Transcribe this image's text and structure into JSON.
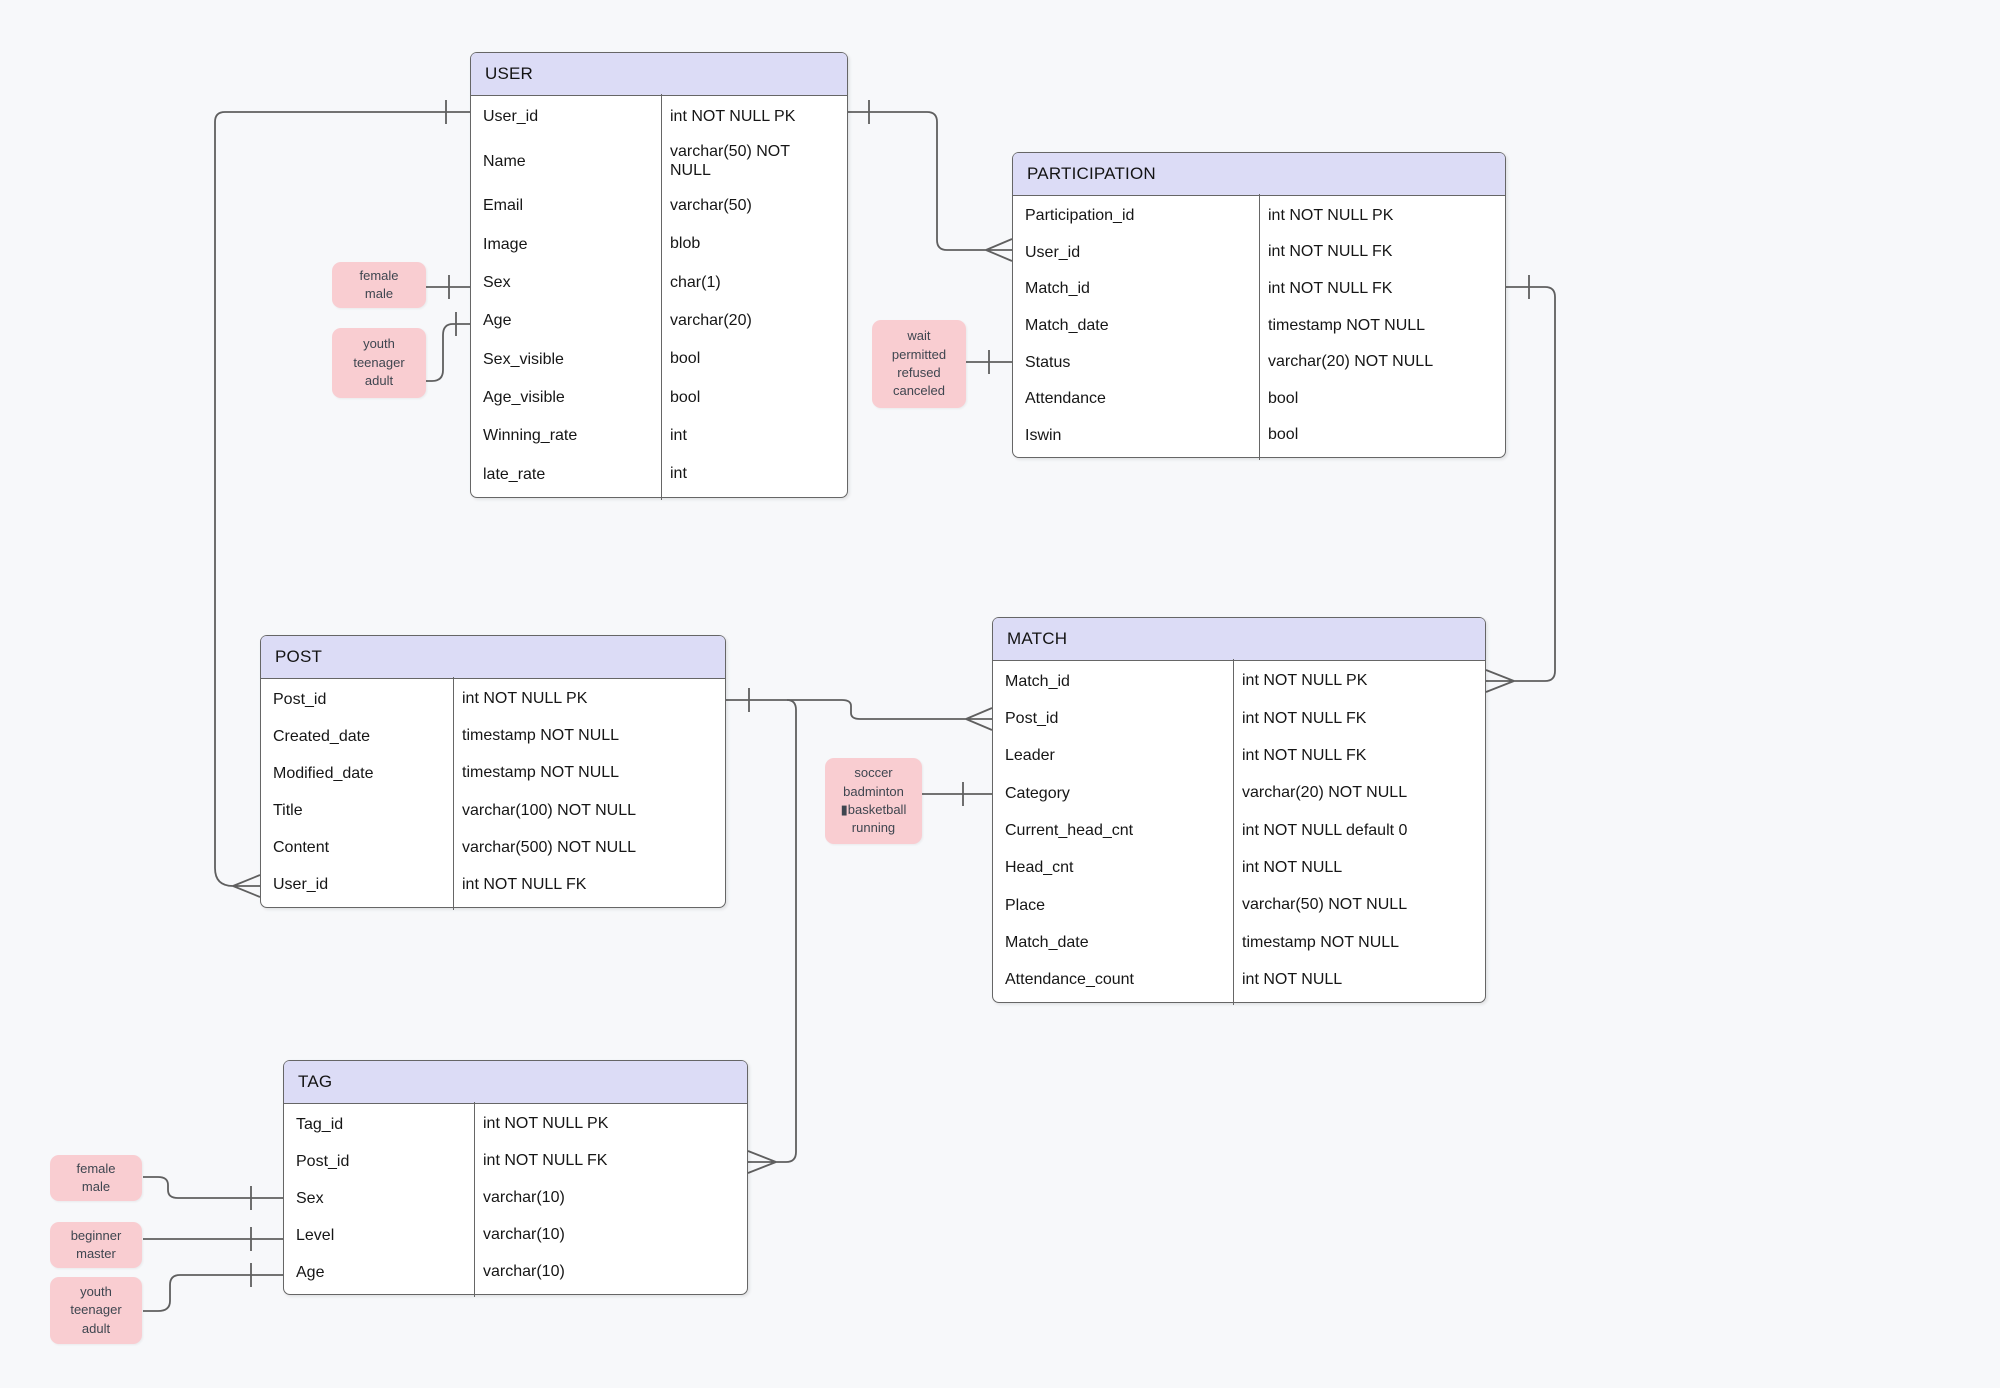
{
  "diagram": {
    "background": "#f7f8fa",
    "colors": {
      "entity_header_fill": "#dcdcf6",
      "entity_body_fill": "#ffffff",
      "entity_border": "#666666",
      "note_fill": "#f9cdd1",
      "note_text": "#3f4650",
      "connector": "#5f5f5f",
      "text": "#161616"
    },
    "entities": [
      {
        "id": "user",
        "title": "USER",
        "fields": [
          {
            "name": "User_id",
            "type": "int NOT NULL PK"
          },
          {
            "name": "Name",
            "type": "varchar(50) NOT\nNULL"
          },
          {
            "name": "Email",
            "type": "varchar(50)"
          },
          {
            "name": "Image",
            "type": "blob"
          },
          {
            "name": "Sex",
            "type": "char(1)"
          },
          {
            "name": "Age",
            "type": "varchar(20)"
          },
          {
            "name": "Sex_visible",
            "type": "bool"
          },
          {
            "name": "Age_visible",
            "type": "bool"
          },
          {
            "name": "Winning_rate",
            "type": "int"
          },
          {
            "name": "late_rate",
            "type": "int"
          }
        ]
      },
      {
        "id": "participation",
        "title": "PARTICIPATION",
        "fields": [
          {
            "name": "Participation_id",
            "type": "int NOT NULL PK"
          },
          {
            "name": "User_id",
            "type": "int NOT NULL FK"
          },
          {
            "name": "Match_id",
            "type": "int NOT NULL FK"
          },
          {
            "name": "Match_date",
            "type": "timestamp NOT NULL"
          },
          {
            "name": "Status",
            "type": "varchar(20) NOT NULL"
          },
          {
            "name": "Attendance",
            "type": "bool"
          },
          {
            "name": "Iswin",
            "type": "bool"
          }
        ]
      },
      {
        "id": "post",
        "title": "POST",
        "fields": [
          {
            "name": "Post_id",
            "type": "int NOT NULL PK"
          },
          {
            "name": "Created_date",
            "type": "timestamp NOT NULL"
          },
          {
            "name": "Modified_date",
            "type": "timestamp NOT NULL"
          },
          {
            "name": "Title",
            "type": "varchar(100) NOT NULL"
          },
          {
            "name": "Content",
            "type": "varchar(500) NOT NULL"
          },
          {
            "name": "User_id",
            "type": "int NOT NULL FK"
          }
        ]
      },
      {
        "id": "match",
        "title": "MATCH",
        "fields": [
          {
            "name": "Match_id",
            "type": "int NOT NULL PK"
          },
          {
            "name": "Post_id",
            "type": "int NOT NULL FK"
          },
          {
            "name": "Leader",
            "type": "int NOT NULL FK"
          },
          {
            "name": "Category",
            "type": "varchar(20) NOT NULL"
          },
          {
            "name": "Current_head_cnt",
            "type": "int NOT NULL default 0"
          },
          {
            "name": "Head_cnt",
            "type": "int NOT NULL"
          },
          {
            "name": "Place",
            "type": "varchar(50) NOT NULL"
          },
          {
            "name": "Match_date",
            "type": "timestamp NOT NULL"
          },
          {
            "name": "Attendance_count",
            "type": "int NOT NULL"
          }
        ]
      },
      {
        "id": "tag",
        "title": "TAG",
        "fields": [
          {
            "name": "Tag_id",
            "type": "int NOT NULL PK"
          },
          {
            "name": "Post_id",
            "type": "int NOT NULL FK"
          },
          {
            "name": "Sex",
            "type": "varchar(10)"
          },
          {
            "name": "Level",
            "type": "varchar(10)"
          },
          {
            "name": "Age",
            "type": "varchar(10)"
          }
        ]
      }
    ],
    "notes": [
      {
        "id": "user-sex",
        "text": "female\nmale"
      },
      {
        "id": "user-age",
        "text": "youth\nteenager\nadult"
      },
      {
        "id": "participation-status",
        "text": "wait\npermitted\nrefused\ncanceled"
      },
      {
        "id": "match-category",
        "text": "soccer\nbadminton\n▮basketball\nrunning"
      },
      {
        "id": "tag-sex",
        "text": "female\nmale"
      },
      {
        "id": "tag-level",
        "text": "beginner\nmaster"
      },
      {
        "id": "tag-age",
        "text": "youth\nteenager\nadult"
      }
    ],
    "relationships": [
      {
        "from": "USER.User_id",
        "to": "PARTICIPATION.User_id",
        "from_card": "one",
        "to_card": "many"
      },
      {
        "from": "USER.User_id",
        "to": "POST.User_id",
        "from_card": "one",
        "to_card": "many"
      },
      {
        "from": "PARTICIPATION.Match_id",
        "to": "MATCH.Match_id",
        "from_card": "one",
        "to_card": "many"
      },
      {
        "from": "POST.Post_id",
        "to": "MATCH.Post_id",
        "from_card": "one",
        "to_card": "many"
      },
      {
        "from": "POST.Post_id",
        "to": "TAG.Post_id",
        "from_card": "one",
        "to_card": "many"
      }
    ]
  }
}
